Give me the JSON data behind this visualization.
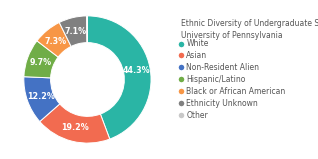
{
  "title": "Ethnic Diversity of Undergraduate Students at\nUniversity of Pennsylvania",
  "labels": [
    "White",
    "Asian",
    "Non-Resident Alien",
    "Hispanic/Latino",
    "Black or African American",
    "Ethnicity Unknown",
    "Other"
  ],
  "values": [
    44.3,
    19.2,
    12.2,
    9.7,
    7.3,
    7.1,
    0.2
  ],
  "colors": [
    "#2ab5a5",
    "#f26b50",
    "#4472c4",
    "#70ad47",
    "#f79646",
    "#808080",
    "#c8c8c8"
  ],
  "title_fontsize": 5.5,
  "legend_fontsize": 5.5,
  "label_fontsize": 5.8,
  "background_color": "#ffffff"
}
